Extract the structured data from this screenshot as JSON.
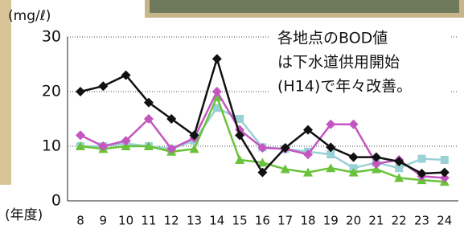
{
  "chart_data": {
    "type": "line",
    "y_label": "(mg/ℓ)",
    "x_label": "(年度)",
    "annotation": [
      "各地点のBOD値",
      "は下水道供用開始",
      "(H14)で年々改善。"
    ],
    "categories": [
      "8",
      "9",
      "10",
      "11",
      "12",
      "13",
      "14",
      "15",
      "16",
      "17",
      "18",
      "19",
      "20",
      "21",
      "22",
      "23",
      "24"
    ],
    "ylim": [
      0,
      30
    ],
    "yticks": [
      0,
      10,
      20,
      30
    ],
    "grid": true,
    "series": [
      {
        "color": "#9ad0d6",
        "marker": "square",
        "values": [
          10,
          10,
          10.5,
          10,
          9.5,
          11,
          17,
          15,
          9.8,
          9.5,
          9,
          8.5,
          6,
          7,
          6,
          7.7,
          7.5
        ]
      },
      {
        "color": "#6ac23a",
        "marker": "triangle",
        "values": [
          10,
          9.5,
          10,
          10,
          9,
          9.5,
          19,
          7.5,
          7,
          5.8,
          5.2,
          6,
          5.2,
          5.8,
          4.2,
          3.8,
          3.5
        ]
      },
      {
        "color": "#c456c0",
        "marker": "diamond",
        "values": [
          12,
          10,
          11,
          15,
          9.5,
          11.5,
          20,
          13,
          9.7,
          9.5,
          8.5,
          14,
          14,
          6.8,
          7.5,
          4.5,
          4.2
        ]
      },
      {
        "color": "#111111",
        "marker": "diamond",
        "values": [
          20,
          21,
          23,
          18,
          15,
          12,
          26,
          12,
          5.2,
          9.7,
          13,
          9.8,
          8,
          8,
          7.2,
          5,
          5.2
        ]
      }
    ]
  }
}
